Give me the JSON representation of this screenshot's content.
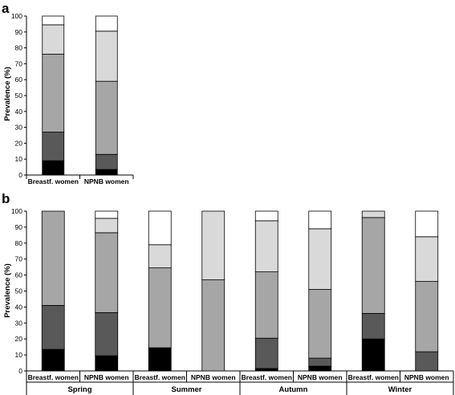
{
  "chart_data": [
    {
      "panel": "a",
      "type": "bar",
      "stacked": true,
      "ylabel": "Prevalence (%)",
      "ylim": [
        0,
        100
      ],
      "yticks": [
        0,
        10,
        20,
        30,
        40,
        50,
        60,
        70,
        80,
        90,
        100
      ],
      "categories": [
        "Breastf. women",
        "NPNB women"
      ],
      "segment_colors": [
        "#000000",
        "#595959",
        "#a6a6a6",
        "#d9d9d9",
        "#ffffff"
      ],
      "series": [
        {
          "values": [
            9,
            3.5
          ]
        },
        {
          "values": [
            18,
            9.5
          ]
        },
        {
          "values": [
            49,
            46
          ]
        },
        {
          "values": [
            18.5,
            31.5
          ]
        },
        {
          "values": [
            5.5,
            9.5
          ]
        }
      ]
    },
    {
      "panel": "b",
      "type": "bar",
      "stacked": true,
      "ylabel": "Prevalence (%)",
      "ylim": [
        0,
        100
      ],
      "yticks": [
        0,
        10,
        20,
        30,
        40,
        50,
        60,
        70,
        80,
        90,
        100
      ],
      "groups": [
        "Spring",
        "Summer",
        "Autumn",
        "Winter"
      ],
      "categories": [
        "Breastf. women",
        "NPNB women",
        "Breastf. women",
        "NPNB women",
        "Breastf. women",
        "NPNB women",
        "Breastf. women",
        "NPNB women"
      ],
      "segment_colors": [
        "#000000",
        "#595959",
        "#a6a6a6",
        "#d9d9d9",
        "#ffffff"
      ],
      "series": [
        {
          "values": [
            13.5,
            9.5,
            14.5,
            0,
            1.5,
            3,
            20,
            0
          ]
        },
        {
          "values": [
            27.5,
            27,
            0,
            0,
            19,
            5,
            16,
            12
          ]
        },
        {
          "values": [
            59,
            50,
            50,
            57,
            41.5,
            43,
            60,
            44
          ]
        },
        {
          "values": [
            0,
            9,
            14.5,
            43,
            32,
            38,
            4,
            28
          ]
        },
        {
          "values": [
            0,
            4.5,
            21,
            0,
            6,
            11,
            0,
            16
          ]
        }
      ]
    }
  ]
}
